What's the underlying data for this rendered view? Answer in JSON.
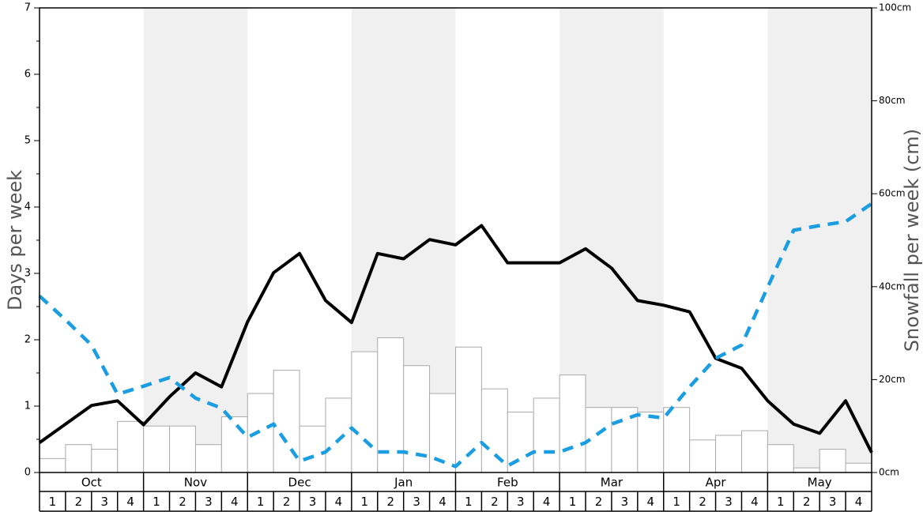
{
  "chart_data": {
    "type": "bar+line",
    "title": "",
    "ylabel_left": "Days per week",
    "ylabel_right": "Snowfall per week (cm)",
    "ylim_left": [
      0,
      7
    ],
    "ylim_right": [
      0,
      100
    ],
    "left_ticks": [
      "0",
      "1",
      "2",
      "3",
      "4",
      "5",
      "6",
      "7"
    ],
    "right_ticks": [
      "0cm",
      "20cm",
      "40cm",
      "60cm",
      "80cm",
      "100cm"
    ],
    "months": [
      "Oct",
      "Nov",
      "Dec",
      "Jan",
      "Feb",
      "Mar",
      "Apr",
      "May"
    ],
    "weeks": [
      "1",
      "2",
      "3",
      "4"
    ],
    "shaded_months": [
      "Nov",
      "Jan",
      "Mar",
      "May"
    ],
    "colors": {
      "shade": "#f0f0f0",
      "bar_fill": "#ffffff",
      "bar_stroke": "#aaaaaa",
      "solid_line": "#000000",
      "dashed_line": "#1b9de2"
    },
    "series": [
      {
        "kind": "bar",
        "axis": "right",
        "values": [
          3,
          6,
          5,
          11,
          10,
          10,
          6,
          12,
          17,
          22,
          10,
          16,
          26,
          29,
          23,
          17,
          27,
          18,
          13,
          16,
          21,
          14,
          14,
          13,
          14,
          7,
          8,
          9,
          6,
          1,
          5,
          2
        ]
      },
      {
        "kind": "line",
        "style": "solid",
        "axis": "left",
        "values": [
          0.45,
          0.73,
          1.01,
          1.08,
          0.72,
          1.14,
          1.5,
          1.29,
          2.27,
          3.01,
          3.3,
          2.59,
          2.26,
          3.3,
          3.22,
          3.51,
          3.43,
          3.72,
          3.16,
          3.16,
          3.16,
          3.37,
          3.08,
          2.59,
          2.52,
          2.42,
          1.72,
          1.57,
          1.08,
          0.73,
          0.59,
          1.08,
          0.3
        ]
      },
      {
        "kind": "line",
        "style": "dashed",
        "axis": "left",
        "values": [
          2.66,
          2.3,
          1.92,
          1.18,
          1.3,
          1.43,
          1.12,
          0.97,
          0.53,
          0.73,
          0.17,
          0.31,
          0.67,
          0.31,
          0.31,
          0.24,
          0.09,
          0.45,
          0.1,
          0.31,
          0.31,
          0.45,
          0.73,
          0.87,
          0.82,
          1.29,
          1.72,
          1.92,
          2.79,
          3.65,
          3.72,
          3.78,
          4.05
        ]
      }
    ]
  }
}
